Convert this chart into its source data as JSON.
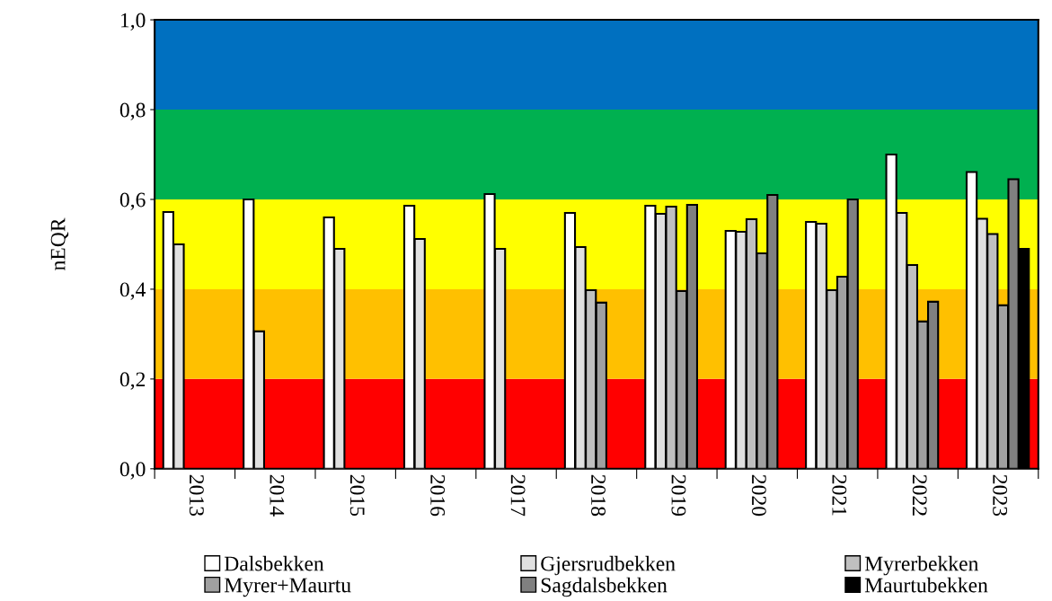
{
  "chart_data": {
    "type": "bar",
    "ylabel": "nEQR",
    "categories": [
      "2013",
      "2014",
      "2015",
      "2016",
      "2017",
      "2018",
      "2019",
      "2020",
      "2021",
      "2022",
      "2023"
    ],
    "series": [
      {
        "name": "Dalsbekken",
        "color": "#ffffff",
        "values": [
          0.572,
          0.6,
          0.56,
          0.586,
          0.612,
          0.57,
          0.586,
          0.53,
          0.55,
          0.7,
          0.661
        ]
      },
      {
        "name": "Gjersrudbekken",
        "color": "#e0e0e0",
        "values": [
          0.5,
          0.306,
          0.49,
          0.512,
          0.49,
          0.494,
          0.568,
          0.528,
          0.546,
          0.57,
          0.557
        ]
      },
      {
        "name": "Myrerbekken",
        "color": "#c0c0c0",
        "values": [
          null,
          null,
          null,
          null,
          null,
          0.398,
          0.584,
          0.556,
          0.398,
          0.454,
          0.523
        ]
      },
      {
        "name": "Myrer+Maurtu",
        "color": "#a0a0a0",
        "values": [
          null,
          null,
          null,
          null,
          null,
          0.37,
          0.396,
          0.48,
          0.428,
          0.328,
          0.364
        ]
      },
      {
        "name": "Sagdalsbekken",
        "color": "#808080",
        "values": [
          null,
          null,
          null,
          null,
          null,
          null,
          0.588,
          0.61,
          0.6,
          0.372,
          0.645
        ]
      },
      {
        "name": "Maurtubekken",
        "color": "#000000",
        "values": [
          null,
          null,
          null,
          null,
          null,
          null,
          null,
          null,
          null,
          null,
          0.49
        ]
      }
    ],
    "ylim": [
      0,
      1.0
    ],
    "yticks": [
      {
        "value": 0,
        "label": "0,0"
      },
      {
        "value": 0.2,
        "label": "0,2"
      },
      {
        "value": 0.4,
        "label": "0,4"
      },
      {
        "value": 0.6,
        "label": "0,6"
      },
      {
        "value": 0.8,
        "label": "0,8"
      },
      {
        "value": 1.0,
        "label": "1,0"
      }
    ],
    "bands": [
      {
        "axis": "y",
        "from": 0,
        "to": 0.2,
        "color": "#ff0000"
      },
      {
        "axis": "y",
        "from": 0.2,
        "to": 0.4,
        "color": "#ffc000"
      },
      {
        "axis": "y",
        "from": 0.4,
        "to": 0.6,
        "color": "#ffff00"
      },
      {
        "axis": "y",
        "from": 0.6,
        "to": 0.8,
        "color": "#00b050"
      },
      {
        "axis": "y",
        "from": 0.8,
        "to": 1.0,
        "color": "#0070c0"
      }
    ],
    "legend": "bottom",
    "grid": false
  }
}
